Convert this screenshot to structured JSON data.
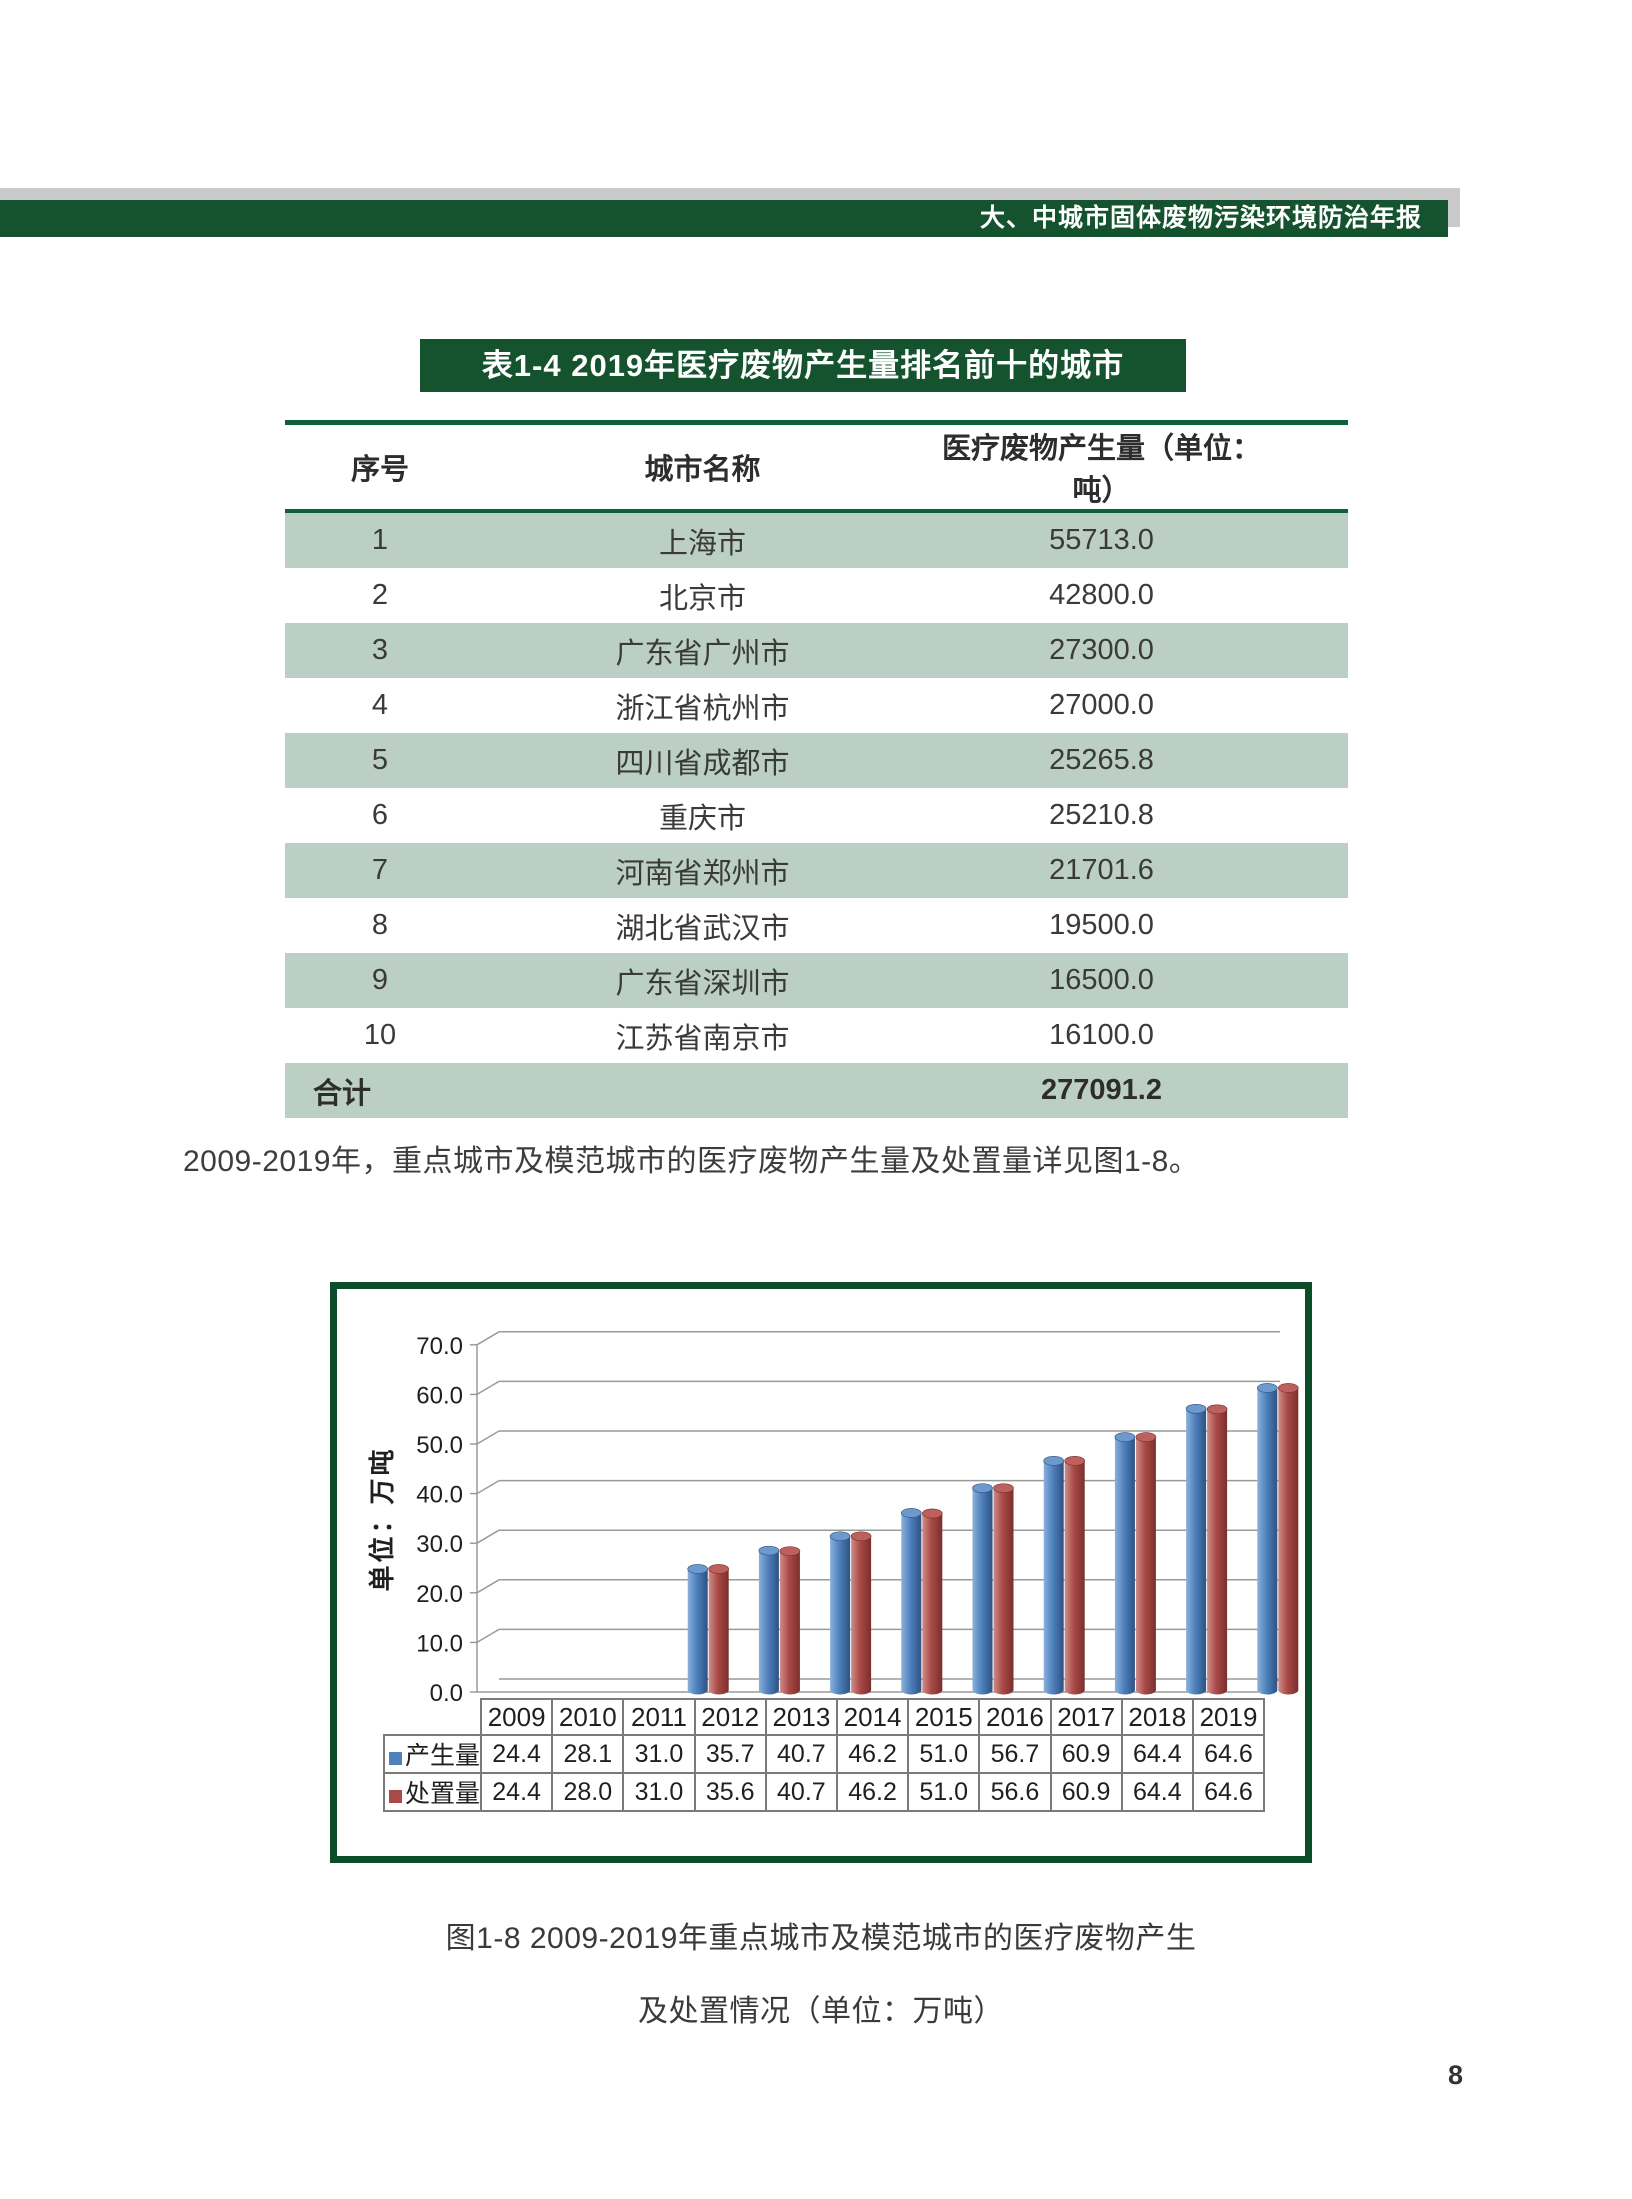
{
  "header": {
    "banner_text": "大、中城市固体废物污染环境防治年报"
  },
  "table_section": {
    "title": "表1-4 2019年医疗废物产生量排名前十的城市",
    "columns": {
      "rank": "序号",
      "city": "城市名称",
      "amount": "医疗废物产生量（单位：吨）"
    },
    "rows": [
      {
        "rank": "1",
        "city": "上海市",
        "amount": "55713.0"
      },
      {
        "rank": "2",
        "city": "北京市",
        "amount": "42800.0"
      },
      {
        "rank": "3",
        "city": "广东省广州市",
        "amount": "27300.0"
      },
      {
        "rank": "4",
        "city": "浙江省杭州市",
        "amount": "27000.0"
      },
      {
        "rank": "5",
        "city": "四川省成都市",
        "amount": "25265.8"
      },
      {
        "rank": "6",
        "city": "重庆市",
        "amount": "25210.8"
      },
      {
        "rank": "7",
        "city": "河南省郑州市",
        "amount": "21701.6"
      },
      {
        "rank": "8",
        "city": "湖北省武汉市",
        "amount": "19500.0"
      },
      {
        "rank": "9",
        "city": "广东省深圳市",
        "amount": "16500.0"
      },
      {
        "rank": "10",
        "city": "江苏省南京市",
        "amount": "16100.0"
      }
    ],
    "total_row": {
      "label": "合计",
      "amount": "277091.2"
    }
  },
  "paragraph": "2009-2019年，重点城市及模范城市的医疗废物产生量及处置量详见图1-8。",
  "chart_data": {
    "type": "bar",
    "title": "",
    "ylabel": "单位：万吨",
    "categories": [
      "2009",
      "2010",
      "2011",
      "2012",
      "2013",
      "2014",
      "2015",
      "2016",
      "2017",
      "2018",
      "2019"
    ],
    "series": [
      {
        "name": "产生量",
        "values": [
          24.4,
          28.1,
          31.0,
          35.7,
          40.7,
          46.2,
          51.0,
          56.7,
          60.9,
          64.4,
          64.6
        ],
        "color": "#4f81bd",
        "gradient": {
          "light": "#8ab1da",
          "main": "#4f81bd",
          "dark": "#2c5282",
          "top": "#6d99cc"
        }
      },
      {
        "name": "处置量",
        "values": [
          24.4,
          28.0,
          31.0,
          35.6,
          40.7,
          46.2,
          51.0,
          56.6,
          60.9,
          64.4,
          64.6
        ],
        "color": "#a94a47",
        "gradient": {
          "light": "#cf8d8a",
          "main": "#a94a47",
          "dark": "#7a2f2d",
          "top": "#bc615e"
        }
      }
    ],
    "ylim": [
      0,
      70
    ],
    "ytick_step": 10,
    "grid": true,
    "legend_position": "table-left",
    "value_table": true
  },
  "figure_caption": {
    "line1": "图1-8 2009-2019年重点城市及模范城市的医疗废物产生",
    "line2": "及处置情况（单位：万吨）"
  },
  "page": {
    "page_number": "8"
  },
  "colors": {
    "banner_green": "#15532f",
    "banner_shadow_gray": "#c9c9c9",
    "table_rule_green": "#0f5f38",
    "row_stripe_green": "#bccfc4",
    "chart_border_green": "#0d4c29",
    "grid_gray": "#9a9a9a"
  }
}
